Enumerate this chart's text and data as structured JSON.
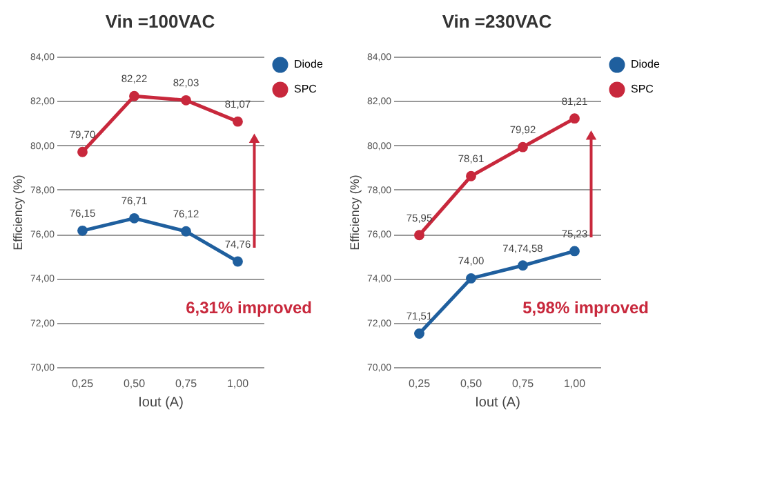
{
  "chart_data": [
    {
      "type": "line",
      "title": "Vin =100VAC",
      "xlabel": "Iout (A)",
      "ylabel": "Efficiency (%)",
      "categories": [
        "0,25",
        "0,50",
        "0,75",
        "1,00"
      ],
      "series": [
        {
          "name": "Diode",
          "color": "#1f5f9e",
          "values": [
            76.15,
            76.71,
            76.12,
            74.76
          ],
          "value_labels": [
            "76,15",
            "76,71",
            "76,12",
            "74,76"
          ]
        },
        {
          "name": "SPC",
          "color": "#c8283c",
          "values": [
            79.7,
            82.22,
            82.03,
            81.07
          ],
          "value_labels": [
            "79,70",
            "82,22",
            "82,03",
            "81,07"
          ]
        }
      ],
      "ylim": [
        70,
        84
      ],
      "yticks": [
        {
          "value": 70,
          "label": "70,00"
        },
        {
          "value": 72,
          "label": "72,00"
        },
        {
          "value": 74,
          "label": "74,00"
        },
        {
          "value": 76,
          "label": "76,00"
        },
        {
          "value": 78,
          "label": "78,00"
        },
        {
          "value": 80,
          "label": "80,00"
        },
        {
          "value": 82,
          "label": "82,00"
        },
        {
          "value": 84,
          "label": "84,00"
        }
      ],
      "grid": "y",
      "legend": "right",
      "marker": "circle",
      "annotations": [
        "6,31% improved"
      ]
    },
    {
      "type": "line",
      "title": "Vin =230VAC",
      "xlabel": "Iout (A)",
      "ylabel": "Efficiency (%)",
      "categories": [
        "0,25",
        "0,50",
        "0,75",
        "1,00"
      ],
      "series": [
        {
          "name": "Diode",
          "color": "#1f5f9e",
          "values": [
            71.51,
            74.0,
            74.58,
            75.23
          ],
          "value_labels": [
            "71,51",
            "74,00",
            "74,74,58",
            "75,23"
          ]
        },
        {
          "name": "SPC",
          "color": "#c8283c",
          "values": [
            75.95,
            78.61,
            79.92,
            81.21
          ],
          "value_labels": [
            "75,95",
            "78,61",
            "79,92",
            "81,21"
          ]
        }
      ],
      "ylim": [
        70,
        84
      ],
      "yticks": [
        {
          "value": 70,
          "label": "70,00"
        },
        {
          "value": 72,
          "label": "72,00"
        },
        {
          "value": 74,
          "label": "74,00"
        },
        {
          "value": 76,
          "label": "76,00"
        },
        {
          "value": 78,
          "label": "78,00"
        },
        {
          "value": 80,
          "label": "80,00"
        },
        {
          "value": 82,
          "label": "82,00"
        },
        {
          "value": 84,
          "label": "84,00"
        }
      ],
      "grid": "y",
      "legend": "right",
      "marker": "circle",
      "annotations": [
        "5,98% improved"
      ]
    }
  ]
}
